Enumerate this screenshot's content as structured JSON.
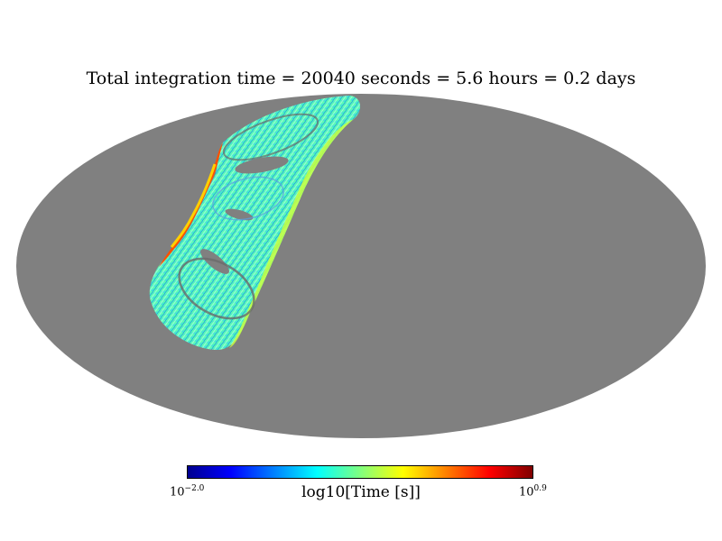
{
  "title": "Total integration time = 20040 seconds = 5.6 hours = 0.2 days",
  "colorbar": {
    "label": "log10[Time [s]]",
    "min_base": "10",
    "min_exp": "−2.0",
    "max_base": "10",
    "max_exp": "0.9",
    "colormap": "jet",
    "colors": [
      "#00008f",
      "#0000ff",
      "#0080ff",
      "#00ffff",
      "#80ff80",
      "#ffff00",
      "#ff8000",
      "#ff0000",
      "#800000"
    ]
  },
  "map": {
    "projection": "mollweide",
    "background_color": "#808080",
    "coverage_region": "curved sky-scan footprint in upper-left quadrant"
  }
}
